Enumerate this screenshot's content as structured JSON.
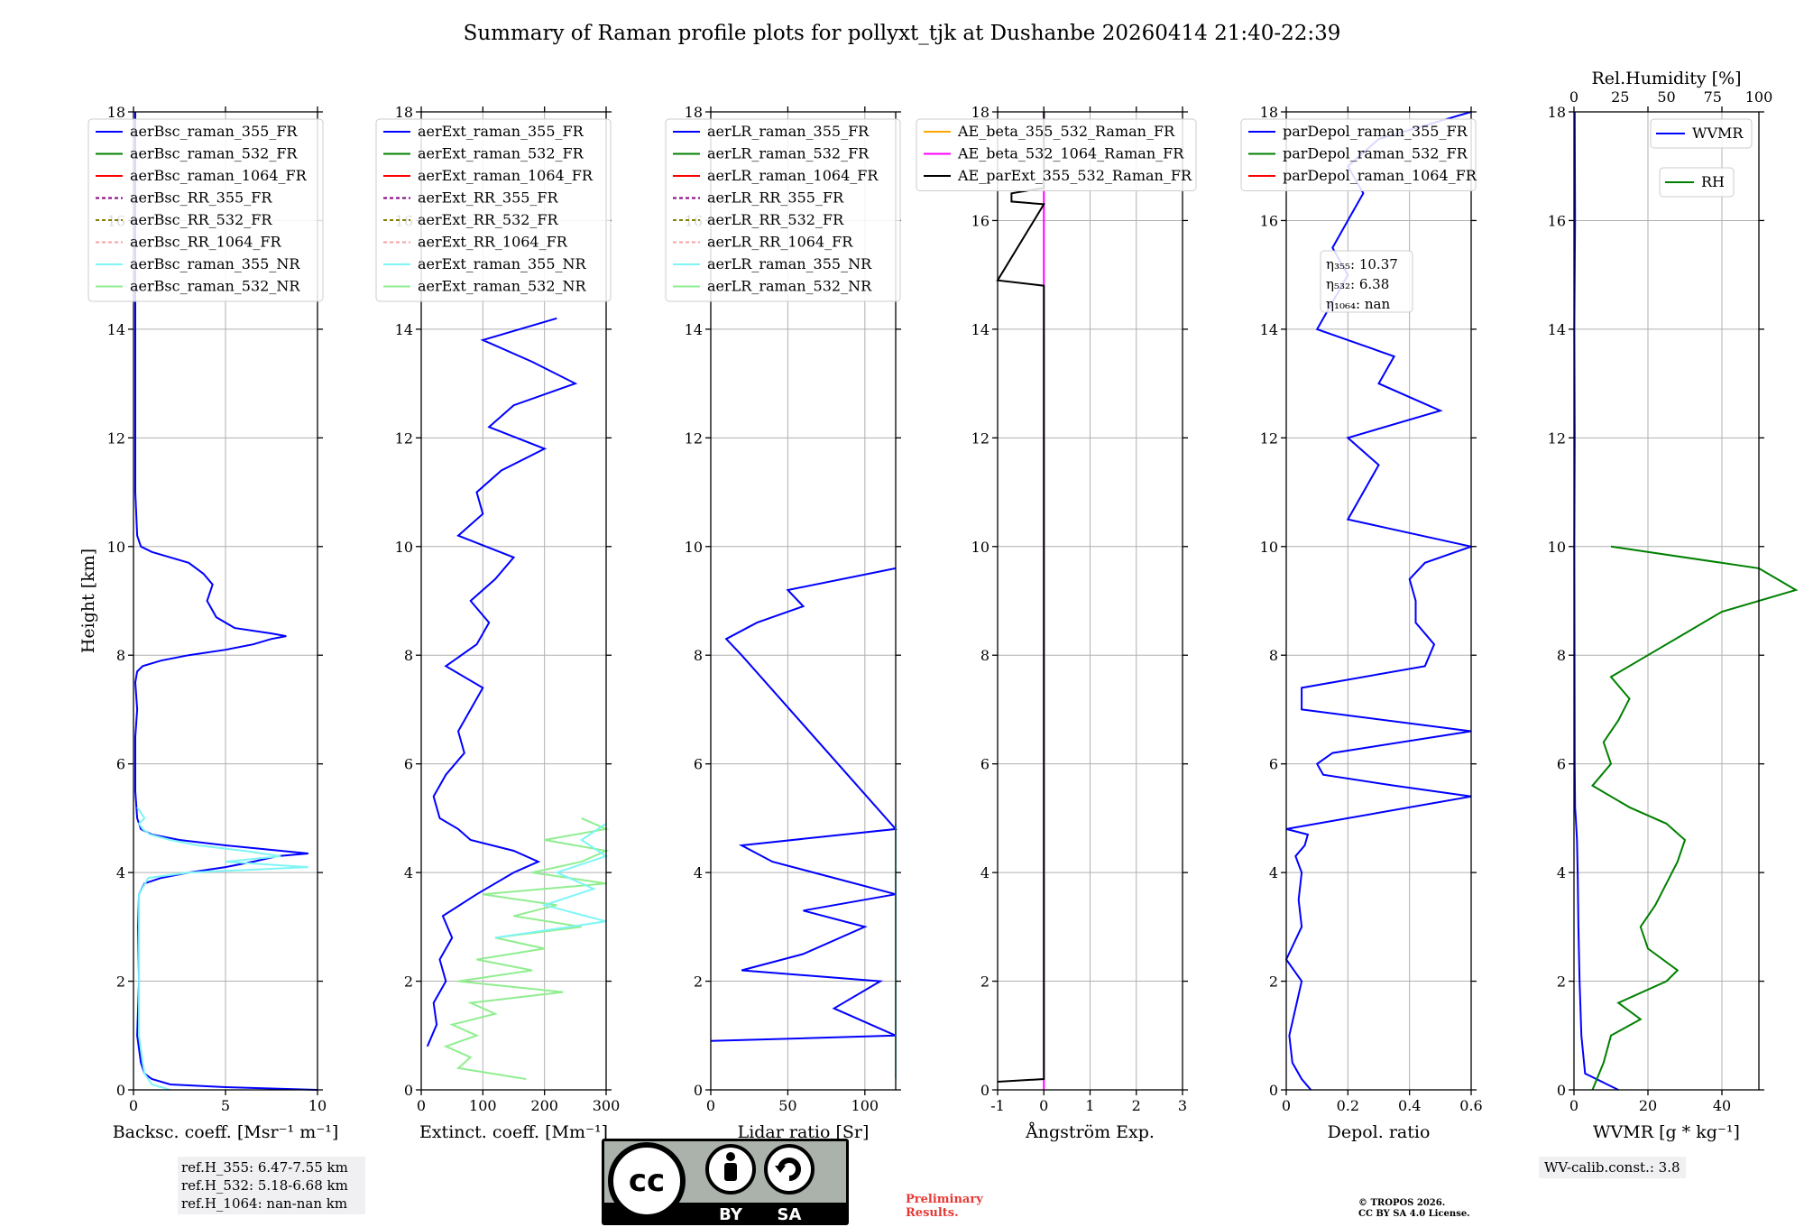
{
  "title": "Summary of Raman profile plots for pollyxt_tjk at Dushanbe 20260414 21:40-22:39",
  "chart_data": [
    {
      "type": "line",
      "id": "backscatter",
      "xlabel": "Backsc. coeff. [Msr⁻¹ m⁻¹]",
      "ylabel": "Height [km]",
      "xlim": [
        0,
        10
      ],
      "ylim": [
        0,
        18
      ],
      "xticks": [
        0,
        5,
        10
      ],
      "yticks": [
        0,
        2,
        4,
        6,
        8,
        10,
        12,
        14,
        16,
        18
      ],
      "legend": [
        "aerBsc_raman_355_FR",
        "aerBsc_raman_532_FR",
        "aerBsc_raman_1064_FR",
        "aerBsc_RR_355_FR",
        "aerBsc_RR_532_FR",
        "aerBsc_RR_1064_FR",
        "aerBsc_raman_355_NR",
        "aerBsc_raman_532_NR"
      ],
      "series": [
        {
          "name": "aerBsc_raman_355_FR",
          "color": "#0000ff",
          "y": [
            0,
            0.05,
            0.1,
            0.2,
            0.3,
            0.5,
            1.0,
            2.0,
            3.0,
            3.6,
            3.8,
            3.9,
            4.0,
            4.1,
            4.2,
            4.3,
            4.35,
            4.4,
            4.5,
            4.6,
            4.7,
            4.8,
            5.0,
            5.5,
            6.0,
            6.5,
            7.0,
            7.5,
            7.7,
            7.8,
            7.9,
            8.0,
            8.1,
            8.2,
            8.3,
            8.35,
            8.4,
            8.5,
            8.7,
            9.0,
            9.3,
            9.5,
            9.7,
            9.8,
            9.9,
            10.0,
            10.2,
            11,
            12,
            13,
            14,
            16,
            18
          ],
          "x": [
            10,
            5,
            2,
            1,
            0.6,
            0.4,
            0.2,
            0.3,
            0.25,
            0.3,
            0.6,
            1.5,
            3,
            5,
            6.5,
            7.8,
            9.5,
            8,
            5,
            2.5,
            1,
            0.4,
            0.2,
            0.1,
            0.1,
            0.1,
            0.2,
            0.1,
            0.2,
            0.5,
            1.5,
            3,
            5,
            6.5,
            7.5,
            8.3,
            7.5,
            5.5,
            4.5,
            4.0,
            4.3,
            3.8,
            3.0,
            2.0,
            1.0,
            0.4,
            0.2,
            0.1,
            0.1,
            0.1,
            0.1,
            0.1,
            0.1
          ]
        },
        {
          "name": "aerBsc_raman_355_NR",
          "color": "#7ff5f5",
          "y": [
            0,
            0.1,
            0.3,
            0.5,
            1.0,
            2.0,
            3.0,
            3.6,
            3.9,
            4.0,
            4.1,
            4.2,
            4.3,
            4.4,
            4.5,
            4.6,
            4.7,
            4.8,
            4.9,
            5.0,
            5.2
          ],
          "x": [
            2,
            1,
            0.6,
            0.5,
            0.3,
            0.3,
            0.3,
            0.3,
            0.8,
            3,
            9.5,
            5,
            8,
            6,
            3.5,
            2,
            0.9,
            0.5,
            0.3,
            0.6,
            0.2
          ]
        }
      ]
    },
    {
      "type": "line",
      "id": "extinction",
      "xlabel": "Extinct. coeff. [Mm⁻¹]",
      "xlim": [
        0,
        300
      ],
      "ylim": [
        0,
        18
      ],
      "xticks": [
        0,
        100,
        200,
        300
      ],
      "legend": [
        "aerExt_raman_355_FR",
        "aerExt_raman_532_FR",
        "aerExt_raman_1064_FR",
        "aerExt_RR_355_FR",
        "aerExt_RR_532_FR",
        "aerExt_RR_1064_FR",
        "aerExt_raman_355_NR",
        "aerExt_raman_532_NR"
      ],
      "series": [
        {
          "name": "aerExt_raman_355_FR",
          "color": "#0000ff",
          "y": [
            0.8,
            1.2,
            1.6,
            2.0,
            2.4,
            2.8,
            3.2,
            3.6,
            4.0,
            4.2,
            4.4,
            4.6,
            4.8,
            5.0,
            5.4,
            5.8,
            6.2,
            6.6,
            7.0,
            7.4,
            7.8,
            8.2,
            8.6,
            9.0,
            9.4,
            9.8,
            10.2,
            10.6,
            11.0,
            11.4,
            11.8,
            12.2,
            12.6,
            13.0,
            13.4,
            13.8,
            14.2
          ],
          "x": [
            10,
            25,
            20,
            40,
            30,
            50,
            35,
            90,
            150,
            190,
            150,
            80,
            60,
            30,
            20,
            40,
            70,
            60,
            80,
            100,
            40,
            90,
            110,
            80,
            120,
            150,
            60,
            100,
            90,
            130,
            200,
            110,
            150,
            250,
            180,
            100,
            220
          ]
        },
        {
          "name": "aerExt_raman_532_NR",
          "color": "#90ee90",
          "y": [
            0.2,
            0.4,
            0.6,
            0.8,
            1.0,
            1.2,
            1.4,
            1.6,
            1.8,
            2.0,
            2.2,
            2.4,
            2.6,
            2.8,
            3.0,
            3.2,
            3.4,
            3.6,
            3.8,
            4.0,
            4.2,
            4.4,
            4.6,
            4.8,
            5.0
          ],
          "x": [
            170,
            60,
            80,
            40,
            90,
            50,
            120,
            80,
            230,
            60,
            180,
            90,
            200,
            120,
            260,
            150,
            220,
            100,
            300,
            180,
            260,
            300,
            200,
            300,
            260
          ]
        },
        {
          "name": "aerExt_raman_355_NR",
          "color": "#7ff5f5",
          "y": [
            2.8,
            3.1,
            3.4,
            3.7,
            4.0,
            4.3,
            4.6,
            4.9
          ],
          "x": [
            120,
            300,
            200,
            280,
            220,
            300,
            260,
            300
          ]
        }
      ]
    },
    {
      "type": "line",
      "id": "lidar_ratio",
      "xlabel": "Lidar ratio [Sr]",
      "xlim": [
        0,
        120
      ],
      "ylim": [
        0,
        18
      ],
      "xticks": [
        0,
        50,
        100
      ],
      "legend": [
        "aerLR_raman_355_FR",
        "aerLR_raman_532_FR",
        "aerLR_raman_1064_FR",
        "aerLR_RR_355_FR",
        "aerLR_RR_532_FR",
        "aerLR_RR_1064_FR",
        "aerLR_raman_355_NR",
        "aerLR_raman_532_NR"
      ],
      "series": [
        {
          "name": "aerLR_raman_355_FR",
          "color": "#0000ff",
          "y": [
            0.9,
            1.0,
            1.5,
            2.0,
            2.2,
            2.5,
            3.0,
            3.3,
            3.6,
            3.9,
            4.2,
            4.5,
            4.8,
            8.0,
            8.3,
            8.6,
            8.9,
            9.2,
            9.6
          ],
          "x": [
            0,
            120,
            80,
            110,
            20,
            60,
            100,
            60,
            120,
            80,
            40,
            20,
            120,
            20,
            10,
            30,
            60,
            50,
            120
          ]
        },
        {
          "name": "aerLR_raman_355_NR",
          "color": "#7ff5f5",
          "y": [
            0.2,
            1.0,
            1.5,
            2.0,
            2.5,
            3.0,
            3.5,
            4.0,
            4.5,
            4.9
          ],
          "x": [
            120,
            120,
            120,
            120,
            120,
            120,
            120,
            120,
            120,
            120
          ]
        }
      ]
    },
    {
      "type": "line",
      "id": "angstrom",
      "xlabel": "Ångström Exp.",
      "xlim": [
        -1,
        3
      ],
      "ylim": [
        0,
        18
      ],
      "xticks": [
        -1,
        0,
        1,
        2,
        3
      ],
      "legend": [
        "AE_beta_355_532_Raman_FR",
        "AE_beta_532_1064_Raman_FR",
        "AE_parExt_355_532_Raman_FR"
      ],
      "series": [
        {
          "name": "AE_beta_532_1064_Raman_FR",
          "color": "#ff00ff",
          "x": [
            0,
            0
          ],
          "y": [
            0,
            18
          ]
        },
        {
          "name": "AE_parExt_355_532_Raman_FR",
          "color": "#000000",
          "y": [
            0.15,
            0.2,
            14.8,
            14.9,
            16.3,
            16.35,
            16.5,
            16.6,
            18
          ],
          "x": [
            -1,
            0,
            0,
            -1,
            0,
            -0.7,
            -0.7,
            0,
            0
          ]
        }
      ]
    },
    {
      "type": "line",
      "id": "depol",
      "xlabel": "Depol. ratio",
      "xlim": [
        0,
        0.6
      ],
      "ylim": [
        0,
        18
      ],
      "xticks": [
        0.0,
        0.2,
        0.4,
        0.6
      ],
      "legend": [
        "parDepol_raman_355_FR",
        "parDepol_raman_532_FR",
        "parDepol_raman_1064_FR"
      ],
      "eta": [
        "η₃₅₅: 10.37",
        "η₅₃₂: 6.38",
        "η₁₀₆₄: nan"
      ],
      "series": [
        {
          "name": "parDepol_raman_355_FR",
          "color": "#0000ff",
          "y": [
            0.0,
            0.2,
            0.5,
            1.0,
            2.0,
            2.4,
            3.0,
            3.5,
            4.0,
            4.3,
            4.5,
            4.7,
            4.8,
            5.4,
            5.6,
            5.8,
            6.0,
            6.2,
            6.6,
            7.0,
            7.4,
            7.8,
            8.2,
            8.6,
            9.0,
            9.4,
            9.7,
            9.9,
            10.0,
            10.5,
            11.0,
            11.5,
            12.0,
            12.5,
            13.0,
            13.5,
            14.0,
            14.5,
            15.0,
            15.5,
            16.0,
            16.5,
            17.0,
            17.5,
            18.0
          ],
          "x": [
            0.08,
            0.05,
            0.02,
            0.01,
            0.05,
            0.0,
            0.05,
            0.04,
            0.05,
            0.03,
            0.06,
            0.07,
            0.0,
            0.6,
            0.35,
            0.12,
            0.1,
            0.15,
            0.6,
            0.05,
            0.05,
            0.45,
            0.48,
            0.42,
            0.42,
            0.4,
            0.45,
            0.55,
            0.6,
            0.2,
            0.25,
            0.3,
            0.2,
            0.5,
            0.3,
            0.35,
            0.1,
            0.15,
            0.2,
            0.15,
            0.2,
            0.25,
            0.2,
            0.3,
            0.6
          ]
        }
      ]
    },
    {
      "type": "line",
      "id": "wvmr",
      "xlabel": "WVMR [g * kg⁻¹]",
      "xlim": [
        0,
        50
      ],
      "ylim": [
        0,
        18
      ],
      "xticks": [
        0,
        20,
        40
      ],
      "top_axis_label": "Rel.Humidity [%]",
      "top_xlim": [
        0,
        100
      ],
      "top_xticks": [
        0,
        25,
        50,
        75,
        100
      ],
      "legend": [
        "WVMR",
        "RH"
      ],
      "series": [
        {
          "name": "WVMR",
          "color": "#0000ff",
          "y": [
            0,
            0.3,
            1.0,
            2.0,
            3.0,
            4.0,
            4.6,
            5.0,
            5.2,
            6.0,
            8.0,
            10.0,
            12,
            14,
            16,
            18
          ],
          "x": [
            12,
            3,
            2,
            1.5,
            1.2,
            1.0,
            0.8,
            0.5,
            0.3,
            0.2,
            0.15,
            0.1,
            0.2,
            0.1,
            0.3,
            0.2
          ]
        },
        {
          "name": "RH",
          "color": "#008000",
          "y": [
            0,
            0.5,
            1.0,
            1.3,
            1.6,
            2.0,
            2.2,
            2.6,
            3.0,
            3.4,
            3.8,
            4.2,
            4.6,
            4.9,
            5.2,
            5.6,
            6.0,
            6.4,
            6.8,
            7.2,
            7.6,
            8.0,
            8.4,
            8.8,
            9.2,
            9.6,
            10.0
          ],
          "x": [
            5,
            8,
            10,
            18,
            12,
            25,
            28,
            20,
            18,
            22,
            25,
            28,
            30,
            25,
            15,
            5,
            10,
            8,
            12,
            15,
            10,
            20,
            30,
            40,
            60,
            50,
            10
          ]
        }
      ]
    }
  ],
  "annotations": {
    "ref_h": [
      "ref.H_355: 6.47-7.55 km",
      "ref.H_532: 5.18-6.68 km",
      "ref.H_1064: nan-nan km"
    ],
    "wv_calib": "WV-calib.const.: 3.8",
    "prelim": [
      "Preliminary",
      "Results."
    ],
    "copyright": [
      "© TROPOS 2026.",
      "CC BY SA 4.0 License."
    ],
    "cc_logo": {
      "cc": "cc",
      "by": "BY",
      "sa": "SA"
    }
  },
  "legend_styles": [
    {
      "color": "#0000ff",
      "dash": ""
    },
    {
      "color": "#008000",
      "dash": ""
    },
    {
      "color": "#ff0000",
      "dash": ""
    },
    {
      "color": "#800080",
      "dash": "4,3"
    },
    {
      "color": "#808000",
      "dash": "4,3"
    },
    {
      "color": "#f4a0a0",
      "dash": "4,3"
    },
    {
      "color": "#7ff5f5",
      "dash": ""
    },
    {
      "color": "#90ee90",
      "dash": ""
    }
  ],
  "angstrom_legend_colors": [
    "#ffa500",
    "#ff00ff",
    "#000000"
  ]
}
